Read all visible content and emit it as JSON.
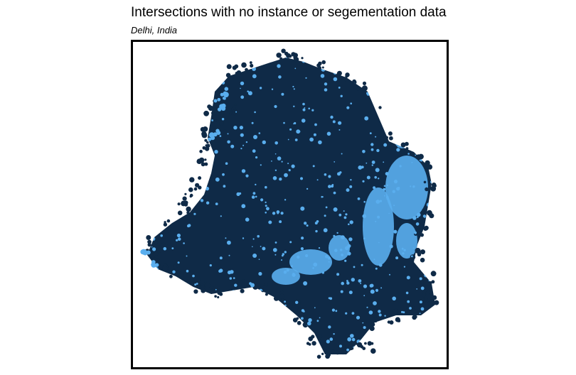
{
  "chart": {
    "title": "Intersections with no instance or segementation data",
    "subtitle": "Delhi, India"
  },
  "colors": {
    "points_primary": "#0f2a47",
    "points_secondary": "#5aaeee",
    "frame": "#000000",
    "background": "#ffffff"
  },
  "map": {
    "type": "point-density-map",
    "region": "Delhi, India"
  }
}
